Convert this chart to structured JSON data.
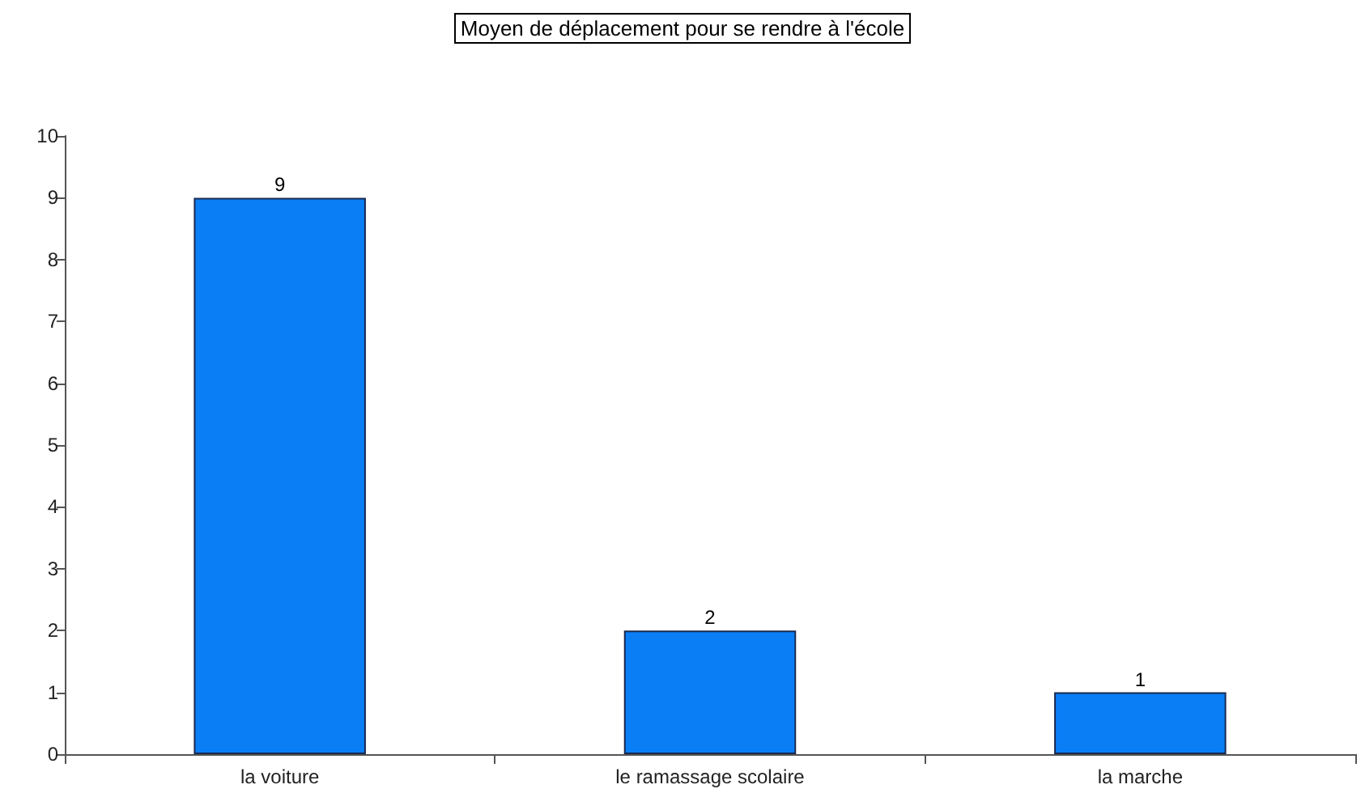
{
  "chart_data": {
    "type": "bar",
    "title": "Moyen de déplacement pour se rendre à l'école",
    "categories": [
      "la voiture",
      "le ramassage scolaire",
      "la marche"
    ],
    "values": [
      9,
      2,
      1
    ],
    "color": "#0a7ef5",
    "ylim": [
      0,
      10
    ],
    "yticks": [
      0,
      1,
      2,
      3,
      4,
      5,
      6,
      7,
      8,
      9,
      10
    ],
    "grid": false,
    "data_labels": true
  }
}
